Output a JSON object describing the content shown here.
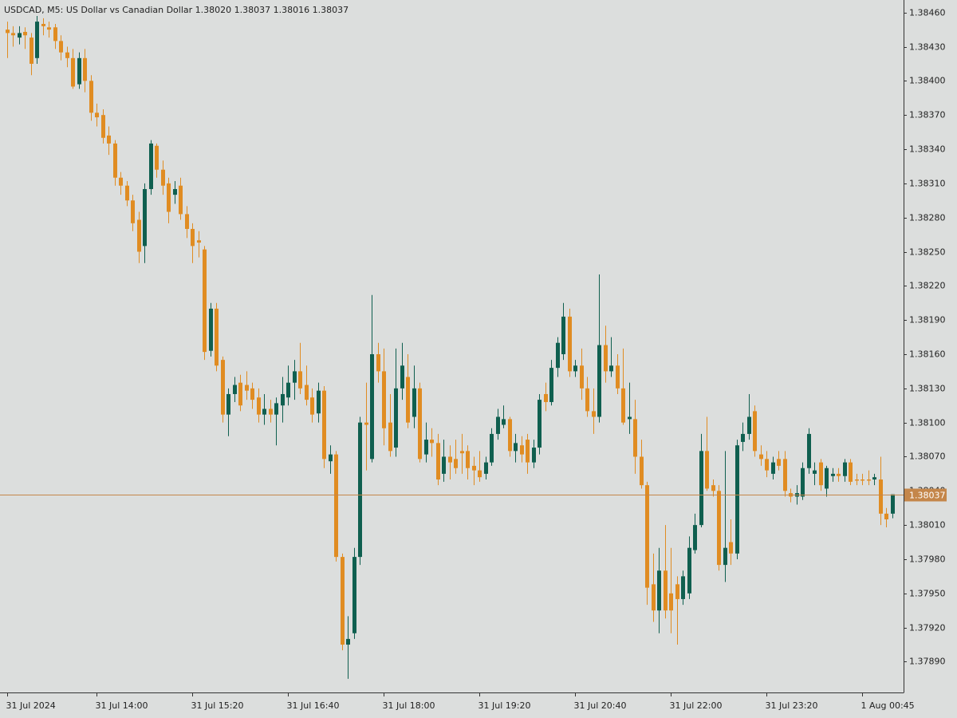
{
  "chart_data": {
    "type": "candlestick",
    "title": "USDCAD, M5:  US Dollar vs Canadian Dollar  1.38020 1.38037 1.38016 1.38037",
    "up_color": "#0f5f4f",
    "down_color": "#e08c22",
    "xlim": [
      -1.2,
      149.9
    ],
    "ylim": [
      1.37863,
      1.38471
    ],
    "xticks": [
      {
        "value": 0,
        "label": "31 Jul 2024"
      },
      {
        "value": 15,
        "label": "31 Jul 14:00"
      },
      {
        "value": 31,
        "label": "31 Jul 15:20"
      },
      {
        "value": 47,
        "label": "31 Jul 16:40"
      },
      {
        "value": 63,
        "label": "31 Jul 18:00"
      },
      {
        "value": 79,
        "label": "31 Jul 19:20"
      },
      {
        "value": 95,
        "label": "31 Jul 20:40"
      },
      {
        "value": 111,
        "label": "31 Jul 22:00"
      },
      {
        "value": 127,
        "label": "31 Jul 23:20"
      },
      {
        "value": 143,
        "label": "1 Aug 00:45"
      }
    ],
    "yticks": [
      {
        "value": 1.3846,
        "label": "1.38460"
      },
      {
        "value": 1.3843,
        "label": "1.38430"
      },
      {
        "value": 1.384,
        "label": "1.38400"
      },
      {
        "value": 1.3837,
        "label": "1.38370"
      },
      {
        "value": 1.3834,
        "label": "1.38340"
      },
      {
        "value": 1.3831,
        "label": "1.38310"
      },
      {
        "value": 1.3828,
        "label": "1.38280"
      },
      {
        "value": 1.3825,
        "label": "1.38250"
      },
      {
        "value": 1.3822,
        "label": "1.38220"
      },
      {
        "value": 1.3819,
        "label": "1.38190"
      },
      {
        "value": 1.3816,
        "label": "1.38160"
      },
      {
        "value": 1.3813,
        "label": "1.38130"
      },
      {
        "value": 1.381,
        "label": "1.38100"
      },
      {
        "value": 1.3807,
        "label": "1.38070"
      },
      {
        "value": 1.3804,
        "label": "1.38040"
      },
      {
        "value": 1.3801,
        "label": "1.38010"
      },
      {
        "value": 1.3798,
        "label": "1.37980"
      },
      {
        "value": 1.3795,
        "label": "1.37950"
      },
      {
        "value": 1.3792,
        "label": "1.37920"
      },
      {
        "value": 1.3789,
        "label": "1.37890"
      }
    ],
    "last_price": {
      "value": 1.38037,
      "label": "1.38037",
      "color": "#c4864a"
    },
    "open": [
      1.38445,
      1.38442,
      1.38438,
      1.38443,
      1.38438,
      1.3842,
      1.3845,
      1.38447,
      1.38447,
      1.38435,
      1.38425,
      1.3842,
      1.38397,
      1.3842,
      1.384,
      1.38372,
      1.3837,
      1.38352,
      1.38345,
      1.38315,
      1.38308,
      1.38295,
      1.38278,
      1.38255,
      1.38305,
      1.38343,
      1.38322,
      1.3831,
      1.383,
      1.38308,
      1.38283,
      1.3827,
      1.3826,
      1.38252,
      1.38163,
      1.382,
      1.38155,
      1.38107,
      1.38125,
      1.38135,
      1.38133,
      1.3813,
      1.38122,
      1.38107,
      1.38112,
      1.38107,
      1.38115,
      1.38122,
      1.38135,
      1.38145,
      1.38133,
      1.38122,
      1.38108,
      1.38128,
      1.38066,
      1.38072,
      1.37982,
      1.37905,
      1.37915,
      1.37982,
      1.381,
      1.38068,
      1.3816,
      1.38145,
      1.381,
      1.38078,
      1.3813,
      1.3814,
      1.38105,
      1.3813,
      1.38072,
      1.38085,
      1.38082,
      1.38055,
      1.3807,
      1.38068,
      1.38075,
      1.38075,
      1.38062,
      1.38058,
      1.38055,
      1.38065,
      1.3809,
      1.38098,
      1.38103,
      1.38075,
      1.3808,
      1.38085,
      1.38065,
      1.38078,
      1.38125,
      1.38118,
      1.38148,
      1.3816,
      1.38193,
      1.38145,
      1.3815,
      1.3813,
      1.3811,
      1.38105,
      1.38168,
      1.38145,
      1.3815,
      1.3813,
      1.38103,
      1.38103,
      1.3807,
      1.38045,
      1.37958,
      1.37935,
      1.3797,
      1.3795,
      1.37958,
      1.37945,
      1.3795,
      1.37988,
      1.3801,
      1.38075,
      1.38045,
      1.3804,
      1.37975,
      1.37995,
      1.37985,
      1.38083,
      1.3809,
      1.3811,
      1.38072,
      1.38068,
      1.38055,
      1.38068,
      1.38068,
      1.38038,
      1.38035,
      1.38035,
      1.3806,
      1.38055,
      1.38065,
      1.38042,
      1.38053,
      1.38055,
      1.38053,
      1.38065,
      1.3805,
      1.3805,
      1.3805,
      1.3805,
      1.3805,
      1.3802,
      1.3802
    ],
    "high": [
      1.38452,
      1.38448,
      1.38448,
      1.38447,
      1.38442,
      1.38457,
      1.38455,
      1.38452,
      1.3845,
      1.3844,
      1.3843,
      1.38428,
      1.38425,
      1.38428,
      1.38405,
      1.3838,
      1.38375,
      1.3836,
      1.38348,
      1.3832,
      1.38312,
      1.383,
      1.38285,
      1.3831,
      1.38348,
      1.38345,
      1.3833,
      1.38315,
      1.38312,
      1.38315,
      1.3829,
      1.38275,
      1.38268,
      1.38255,
      1.38205,
      1.38205,
      1.38158,
      1.3813,
      1.3814,
      1.38142,
      1.38145,
      1.38135,
      1.3813,
      1.38125,
      1.3812,
      1.38122,
      1.3814,
      1.3815,
      1.38155,
      1.3817,
      1.3815,
      1.3813,
      1.38135,
      1.38132,
      1.3808,
      1.38075,
      1.37985,
      1.3793,
      1.3799,
      1.38105,
      1.38135,
      1.38212,
      1.3817,
      1.38165,
      1.38125,
      1.38165,
      1.3817,
      1.3816,
      1.3815,
      1.38135,
      1.381,
      1.38095,
      1.3809,
      1.38085,
      1.3808,
      1.38085,
      1.3809,
      1.3808,
      1.3807,
      1.38075,
      1.3807,
      1.38095,
      1.38112,
      1.38115,
      1.38105,
      1.3809,
      1.38088,
      1.3809,
      1.38085,
      1.38125,
      1.38135,
      1.38155,
      1.38175,
      1.38205,
      1.382,
      1.38155,
      1.38165,
      1.3814,
      1.3813,
      1.3823,
      1.38185,
      1.38175,
      1.3816,
      1.38165,
      1.38135,
      1.3812,
      1.38085,
      1.38048,
      1.37985,
      1.3799,
      1.3801,
      1.3799,
      1.37965,
      1.3797,
      1.38,
      1.3802,
      1.3809,
      1.38105,
      1.3805,
      1.38045,
      1.38075,
      1.38015,
      1.38085,
      1.381,
      1.38125,
      1.38115,
      1.3808,
      1.38075,
      1.3807,
      1.38075,
      1.38075,
      1.38042,
      1.38045,
      1.38065,
      1.38095,
      1.38065,
      1.38068,
      1.38062,
      1.3806,
      1.3806,
      1.38068,
      1.38068,
      1.38055,
      1.38055,
      1.38058,
      1.38055,
      1.3807,
      1.38025,
      1.38037
    ],
    "low": [
      1.3842,
      1.3843,
      1.38432,
      1.38428,
      1.38405,
      1.38415,
      1.3844,
      1.38438,
      1.38428,
      1.38418,
      1.38412,
      1.38393,
      1.38393,
      1.3839,
      1.38365,
      1.3836,
      1.38345,
      1.38335,
      1.38308,
      1.383,
      1.3829,
      1.38268,
      1.3824,
      1.3824,
      1.383,
      1.38315,
      1.383,
      1.38275,
      1.38292,
      1.38278,
      1.38262,
      1.3824,
      1.38245,
      1.38155,
      1.38158,
      1.38145,
      1.381,
      1.38088,
      1.38118,
      1.3811,
      1.3812,
      1.38112,
      1.381,
      1.38098,
      1.381,
      1.3808,
      1.381,
      1.38115,
      1.3812,
      1.38125,
      1.38115,
      1.381,
      1.381,
      1.3806,
      1.38055,
      1.37978,
      1.379,
      1.37875,
      1.3791,
      1.37975,
      1.38058,
      1.38065,
      1.38135,
      1.3808,
      1.3807,
      1.3807,
      1.3812,
      1.38095,
      1.38095,
      1.38065,
      1.38065,
      1.3807,
      1.38045,
      1.38048,
      1.3805,
      1.38055,
      1.38055,
      1.3805,
      1.38045,
      1.38048,
      1.3805,
      1.38062,
      1.38085,
      1.38095,
      1.3807,
      1.38065,
      1.38065,
      1.38055,
      1.3806,
      1.38072,
      1.3811,
      1.38115,
      1.3814,
      1.38155,
      1.3814,
      1.3814,
      1.3812,
      1.38105,
      1.3809,
      1.381,
      1.38135,
      1.3814,
      1.38125,
      1.38098,
      1.3809,
      1.38055,
      1.38042,
      1.3794,
      1.37925,
      1.37915,
      1.37928,
      1.37915,
      1.37905,
      1.3794,
      1.37945,
      1.37985,
      1.38008,
      1.3804,
      1.38035,
      1.3797,
      1.3796,
      1.37975,
      1.3798,
      1.38075,
      1.38085,
      1.3807,
      1.38062,
      1.38052,
      1.3805,
      1.38058,
      1.38035,
      1.3803,
      1.38028,
      1.38032,
      1.38055,
      1.38045,
      1.3804,
      1.38035,
      1.38048,
      1.38048,
      1.38048,
      1.38045,
      1.38045,
      1.38045,
      1.38045,
      1.38045,
      1.3801,
      1.38008,
      1.38016
    ],
    "close": [
      1.38442,
      1.3844,
      1.38442,
      1.3844,
      1.38415,
      1.38452,
      1.38448,
      1.38445,
      1.38435,
      1.38425,
      1.3842,
      1.38395,
      1.3842,
      1.384,
      1.38372,
      1.38368,
      1.3835,
      1.38345,
      1.38315,
      1.38308,
      1.38295,
      1.38275,
      1.3825,
      1.38305,
      1.38345,
      1.38322,
      1.38308,
      1.38285,
      1.38305,
      1.38283,
      1.3827,
      1.38255,
      1.38258,
      1.38162,
      1.382,
      1.3815,
      1.38107,
      1.38125,
      1.38133,
      1.38115,
      1.38128,
      1.3812,
      1.38107,
      1.38112,
      1.38107,
      1.38117,
      1.38125,
      1.38135,
      1.38145,
      1.3813,
      1.3812,
      1.38107,
      1.38128,
      1.38068,
      1.38072,
      1.37982,
      1.37905,
      1.3791,
      1.37982,
      1.381,
      1.38098,
      1.3816,
      1.38145,
      1.38095,
      1.38075,
      1.3813,
      1.3815,
      1.381,
      1.3813,
      1.38068,
      1.38085,
      1.38082,
      1.3805,
      1.3807,
      1.38065,
      1.3806,
      1.38073,
      1.3806,
      1.38058,
      1.38052,
      1.38065,
      1.3809,
      1.38105,
      1.38103,
      1.38075,
      1.38082,
      1.38072,
      1.38065,
      1.38078,
      1.3812,
      1.38118,
      1.38148,
      1.3817,
      1.38193,
      1.38145,
      1.3815,
      1.3813,
      1.3811,
      1.38105,
      1.38168,
      1.38145,
      1.3815,
      1.3813,
      1.381,
      1.38105,
      1.3807,
      1.38045,
      1.37955,
      1.37935,
      1.3797,
      1.37935,
      1.37935,
      1.37945,
      1.37965,
      1.3799,
      1.3801,
      1.38075,
      1.38042,
      1.3804,
      1.37975,
      1.3799,
      1.37985,
      1.3808,
      1.3809,
      1.38105,
      1.38075,
      1.38068,
      1.38058,
      1.38065,
      1.38062,
      1.3804,
      1.38035,
      1.38038,
      1.3806,
      1.3809,
      1.38058,
      1.38045,
      1.3806,
      1.38055,
      1.38053,
      1.38065,
      1.38048,
      1.38049,
      1.38049,
      1.38049,
      1.38052,
      1.3802,
      1.38015,
      1.38037
    ]
  }
}
